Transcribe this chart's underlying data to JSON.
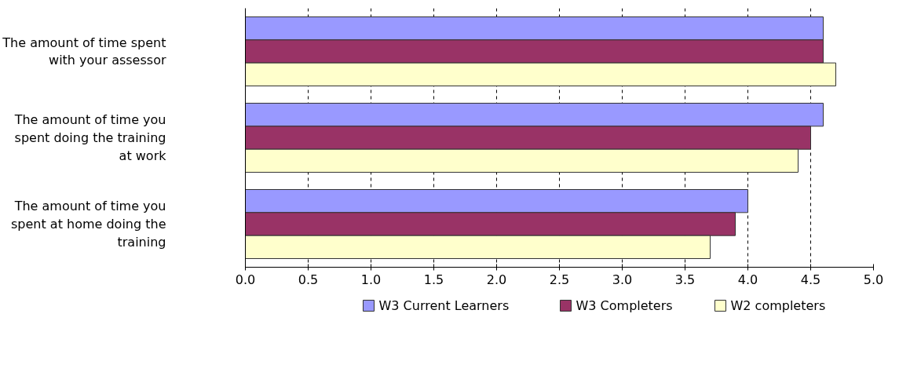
{
  "chart_data": {
    "type": "bar",
    "orientation": "horizontal",
    "categories": [
      "The amount of time spent with your assessor",
      "The amount of time you spent doing the training at work",
      "The amount of time you spent at home doing the training"
    ],
    "series": [
      {
        "name": "W3 Current Learners",
        "color": "#9999ff",
        "values": [
          4.6,
          4.6,
          4.0
        ]
      },
      {
        "name": "W3 Completers",
        "color": "#993366",
        "values": [
          4.6,
          4.5,
          3.9
        ]
      },
      {
        "name": "W2 completers",
        "color": "#ffffcc",
        "values": [
          4.7,
          4.4,
          3.7
        ]
      }
    ],
    "xlim": [
      0,
      5
    ],
    "xticks": [
      {
        "value": 0,
        "label": "0.0"
      },
      {
        "value": 0.5,
        "label": "0.5"
      },
      {
        "value": 1,
        "label": "1.0"
      },
      {
        "value": 1.5,
        "label": "1.5"
      },
      {
        "value": 2,
        "label": "2.0"
      },
      {
        "value": 2.5,
        "label": "2.5"
      },
      {
        "value": 3,
        "label": "3.0"
      },
      {
        "value": 3.5,
        "label": "3.5"
      },
      {
        "value": 4,
        "label": "4.0"
      },
      {
        "value": 4.5,
        "label": "4.5"
      },
      {
        "value": 5,
        "label": "5.0"
      }
    ],
    "grid": "x",
    "legend": "bottom"
  }
}
